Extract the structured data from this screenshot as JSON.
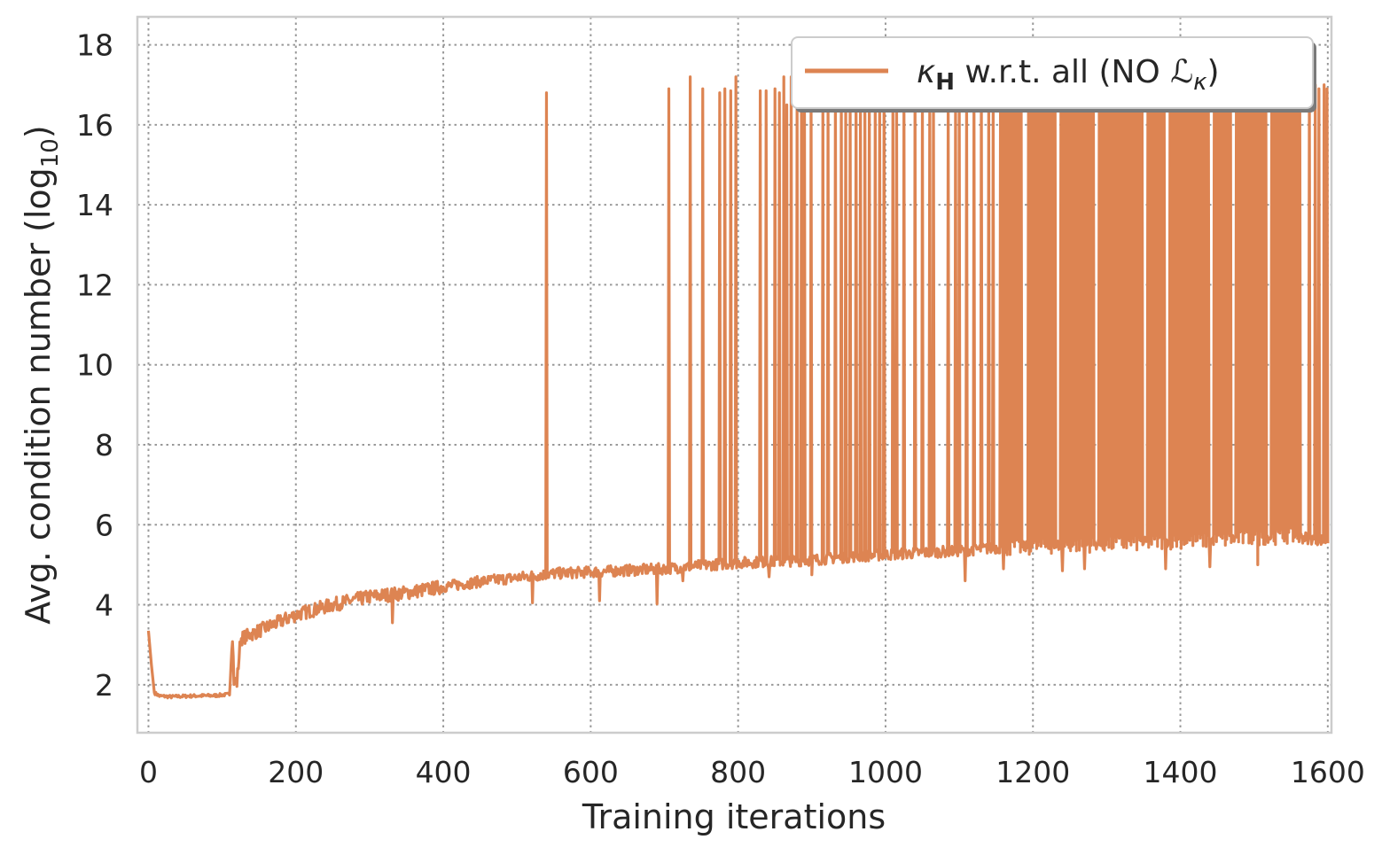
{
  "chart_data": {
    "type": "line",
    "title": "",
    "xlabel": "Training iterations",
    "ylabel_main": "Avg. condition number (log",
    "ylabel_sub": "10",
    "ylabel_close": ")",
    "xlim": [
      -15,
      1605
    ],
    "ylim": [
      0.8,
      18.7
    ],
    "xticks": [
      0,
      200,
      400,
      600,
      800,
      1000,
      1200,
      1400,
      1600
    ],
    "yticks": [
      2,
      4,
      6,
      8,
      10,
      12,
      14,
      16,
      18
    ],
    "grid": true,
    "legend_position": "top-right",
    "series": [
      {
        "name": "κH w.r.t. all (NO ℒκ)",
        "legend_kappa": "κ",
        "legend_kappa_sub": "H",
        "legend_mid": " w.r.t. all (NO ",
        "legend_L": "ℒ",
        "legend_L_sub": "κ",
        "legend_close": ")",
        "color": "#dd8452",
        "base_points": [
          [
            0,
            3.35
          ],
          [
            4,
            2.5
          ],
          [
            8,
            1.8
          ],
          [
            15,
            1.72
          ],
          [
            30,
            1.7
          ],
          [
            60,
            1.72
          ],
          [
            90,
            1.73
          ],
          [
            110,
            1.76
          ],
          [
            114,
            3.25
          ],
          [
            116,
            2.1
          ],
          [
            120,
            2.05
          ],
          [
            125,
            3.15
          ],
          [
            150,
            3.35
          ],
          [
            200,
            3.75
          ],
          [
            250,
            4.0
          ],
          [
            300,
            4.2
          ],
          [
            350,
            4.3
          ],
          [
            400,
            4.45
          ],
          [
            450,
            4.58
          ],
          [
            500,
            4.68
          ],
          [
            550,
            4.78
          ],
          [
            600,
            4.82
          ],
          [
            650,
            4.86
          ],
          [
            700,
            4.9
          ],
          [
            750,
            4.98
          ],
          [
            800,
            5.05
          ],
          [
            850,
            5.08
          ],
          [
            900,
            5.12
          ],
          [
            950,
            5.2
          ],
          [
            1000,
            5.25
          ],
          [
            1050,
            5.3
          ],
          [
            1100,
            5.35
          ],
          [
            1150,
            5.42
          ],
          [
            1200,
            5.45
          ],
          [
            1250,
            5.5
          ],
          [
            1300,
            5.52
          ],
          [
            1350,
            5.55
          ],
          [
            1400,
            5.6
          ],
          [
            1450,
            5.62
          ],
          [
            1500,
            5.68
          ],
          [
            1550,
            5.72
          ],
          [
            1600,
            5.6
          ]
        ],
        "dips": [
          [
            331,
            3.55
          ],
          [
            521,
            4.05
          ],
          [
            612,
            4.1
          ],
          [
            690,
            4.02
          ],
          [
            725,
            4.6
          ],
          [
            842,
            4.7
          ],
          [
            900,
            4.75
          ],
          [
            1025,
            4.7
          ],
          [
            1065,
            4.7
          ],
          [
            1108,
            4.6
          ],
          [
            1160,
            4.9
          ],
          [
            1240,
            4.85
          ],
          [
            1270,
            4.9
          ],
          [
            1380,
            4.9
          ],
          [
            1440,
            4.95
          ],
          [
            1505,
            5.0
          ]
        ],
        "spikes": [
          [
            540,
            16.8
          ],
          [
            706,
            16.9
          ],
          [
            735,
            17.2
          ],
          [
            752,
            16.9
          ],
          [
            775,
            16.8
          ],
          [
            782,
            16.9
          ],
          [
            790,
            16.85
          ],
          [
            797,
            17.2
          ],
          [
            830,
            16.85
          ],
          [
            838,
            16.85
          ],
          [
            850,
            16.9
          ],
          [
            856,
            16.8
          ],
          [
            862,
            17.2
          ],
          [
            866,
            16.5
          ],
          [
            872,
            17.2
          ],
          [
            880,
            16.9
          ],
          [
            886,
            17.0
          ],
          [
            890,
            16.9
          ],
          [
            899,
            16.85
          ],
          [
            915,
            16.9
          ],
          [
            922,
            16.6
          ],
          [
            932,
            17.2
          ],
          [
            940,
            17.0
          ],
          [
            946,
            16.8
          ],
          [
            952,
            16.9
          ],
          [
            960,
            17.2
          ],
          [
            966,
            16.8
          ],
          [
            972,
            16.9
          ],
          [
            978,
            17.0
          ],
          [
            986,
            16.8
          ],
          [
            992,
            16.9
          ],
          [
            998,
            17.2
          ],
          [
            1010,
            16.8
          ],
          [
            1015,
            16.9
          ],
          [
            1025,
            16.8
          ],
          [
            1040,
            17.0
          ],
          [
            1050,
            16.8
          ],
          [
            1060,
            17.2
          ],
          [
            1065,
            16.9
          ],
          [
            1085,
            16.9
          ],
          [
            1095,
            16.8
          ],
          [
            1100,
            16.9
          ],
          [
            1110,
            16.8
          ],
          [
            1120,
            16.9
          ],
          [
            1130,
            17.2
          ],
          [
            1140,
            16.8
          ],
          [
            1146,
            16.9
          ]
        ],
        "dense_from": 1155,
        "dense_to": 1562,
        "dense_high": 17.2,
        "dense_gaps": [
          [
            1185,
            1192
          ],
          [
            1232,
            1236
          ],
          [
            1284,
            1289
          ],
          [
            1349,
            1354
          ],
          [
            1380,
            1384
          ],
          [
            1440,
            1445
          ],
          [
            1470,
            1474
          ],
          [
            1518,
            1522
          ]
        ],
        "tail_spikes": [
          [
            1575,
            16.9
          ],
          [
            1583,
            17.0
          ],
          [
            1588,
            16.9
          ],
          [
            1595,
            17.0
          ],
          [
            1599,
            16.9
          ]
        ]
      }
    ]
  }
}
